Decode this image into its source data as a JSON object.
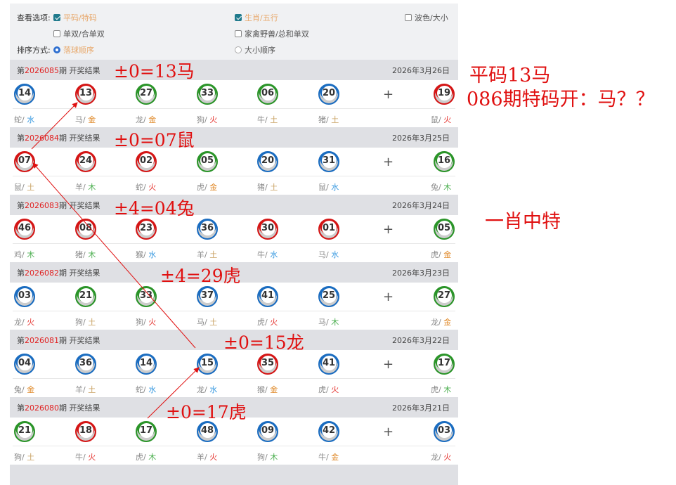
{
  "options": {
    "view_label": "查看选项:",
    "sort_label": "排序方式:",
    "checks": [
      {
        "label": "平码/特码",
        "checked": true
      },
      {
        "label": "生肖/五行",
        "checked": true
      },
      {
        "label": "波色/大小",
        "checked": false
      },
      {
        "label": "单双/合单双",
        "checked": false
      },
      {
        "label": "家禽野兽/总和单双",
        "checked": false
      }
    ],
    "radios": [
      {
        "label": "落球顺序",
        "selected": true
      },
      {
        "label": "大小顺序",
        "selected": false
      }
    ]
  },
  "colors": {
    "red": "#d41515",
    "blue": "#1a6cc0",
    "green": "#2a9428",
    "金": "#e08a2a",
    "木": "#4caf50",
    "水": "#3a9ae0",
    "火": "#e53935",
    "土": "#c8a060"
  },
  "period_prefix": "第",
  "period_suffix": "期 开奖结果",
  "plus": "+",
  "periods": [
    {
      "num": "2026085",
      "date": "2026年3月26日",
      "balls": [
        [
          "14",
          "blue",
          "蛇",
          "水"
        ],
        [
          "13",
          "red",
          "马",
          "金"
        ],
        [
          "27",
          "green",
          "龙",
          "金"
        ],
        [
          "33",
          "green",
          "狗",
          "火"
        ],
        [
          "06",
          "green",
          "牛",
          "土"
        ],
        [
          "20",
          "blue",
          "猪",
          "土"
        ],
        [
          "19",
          "red",
          "鼠",
          "火"
        ]
      ]
    },
    {
      "num": "2026084",
      "date": "2026年3月25日",
      "balls": [
        [
          "07",
          "red",
          "鼠",
          "土"
        ],
        [
          "24",
          "red",
          "羊",
          "木"
        ],
        [
          "02",
          "red",
          "蛇",
          "火"
        ],
        [
          "05",
          "green",
          "虎",
          "金"
        ],
        [
          "20",
          "blue",
          "猪",
          "土"
        ],
        [
          "31",
          "blue",
          "鼠",
          "水"
        ],
        [
          "16",
          "green",
          "兔",
          "木"
        ]
      ]
    },
    {
      "num": "2026083",
      "date": "2026年3月24日",
      "balls": [
        [
          "46",
          "red",
          "鸡",
          "木"
        ],
        [
          "08",
          "red",
          "猪",
          "木"
        ],
        [
          "23",
          "red",
          "猴",
          "水"
        ],
        [
          "36",
          "blue",
          "羊",
          "土"
        ],
        [
          "30",
          "red",
          "牛",
          "水"
        ],
        [
          "01",
          "red",
          "马",
          "水"
        ],
        [
          "05",
          "green",
          "虎",
          "金"
        ]
      ]
    },
    {
      "num": "2026082",
      "date": "2026年3月23日",
      "balls": [
        [
          "03",
          "blue",
          "龙",
          "火"
        ],
        [
          "21",
          "green",
          "狗",
          "土"
        ],
        [
          "33",
          "green",
          "狗",
          "火"
        ],
        [
          "37",
          "blue",
          "马",
          "土"
        ],
        [
          "41",
          "blue",
          "虎",
          "火"
        ],
        [
          "25",
          "blue",
          "马",
          "木"
        ],
        [
          "27",
          "green",
          "龙",
          "金"
        ]
      ]
    },
    {
      "num": "2026081",
      "date": "2026年3月22日",
      "balls": [
        [
          "04",
          "blue",
          "兔",
          "金"
        ],
        [
          "36",
          "blue",
          "羊",
          "土"
        ],
        [
          "14",
          "blue",
          "蛇",
          "水"
        ],
        [
          "15",
          "blue",
          "龙",
          "水"
        ],
        [
          "35",
          "red",
          "猴",
          "金"
        ],
        [
          "41",
          "blue",
          "虎",
          "火"
        ],
        [
          "17",
          "green",
          "虎",
          "木"
        ]
      ]
    },
    {
      "num": "2026080",
      "date": "2026年3月21日",
      "balls": [
        [
          "21",
          "green",
          "狗",
          "土"
        ],
        [
          "18",
          "red",
          "牛",
          "火"
        ],
        [
          "17",
          "green",
          "虎",
          "木"
        ],
        [
          "48",
          "blue",
          "羊",
          "火"
        ],
        [
          "09",
          "blue",
          "狗",
          "木"
        ],
        [
          "42",
          "blue",
          "牛",
          "金"
        ],
        [
          "03",
          "blue",
          "龙",
          "火"
        ]
      ]
    }
  ],
  "annotations": {
    "a1": "±0=13马",
    "a2": "±0=07鼠",
    "a3": "±4=04兔",
    "a4": "±4=29虎",
    "a5": "±0=15龙",
    "a6": "±0=17虎",
    "side1": "平码13马",
    "side2": "086期特码开：马？？",
    "side3": "一肖中特"
  }
}
